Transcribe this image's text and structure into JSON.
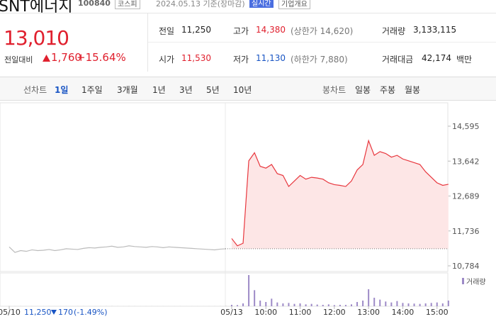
{
  "header": {
    "name": "SNT에너지",
    "code": "100840",
    "market": "코스피",
    "date": "2024.05.13 기준(장마감)",
    "realtime": "실시간",
    "overview": "기업개요"
  },
  "price": {
    "current": "13,010",
    "change_label": "전일대비",
    "change": "1,760",
    "change_rate": "+15.64%"
  },
  "quote": {
    "items": [
      {
        "label": "전일",
        "value": "11,250"
      },
      {
        "label": "고가",
        "value": "14,380",
        "note": "(상한가 14,620)"
      },
      {
        "label": "거래량",
        "value": "3,133,115"
      },
      {
        "label": "시가",
        "value": "11,530"
      },
      {
        "label": "저가",
        "value": "11,130",
        "note": "(하한가 7,880)"
      },
      {
        "label": "거래대금",
        "value": "42,174",
        "unit": "백만"
      }
    ]
  },
  "tabs": {
    "line_label": "선차트",
    "line": [
      "1일",
      "1주일",
      "3개월",
      "1년",
      "3년",
      "5년",
      "10년"
    ],
    "candle_label": "봉차트",
    "candle": [
      "일봉",
      "주봉",
      "월봉"
    ]
  },
  "footer": {
    "date": "05/10",
    "price": "11,250",
    "change": "170",
    "rate": "(-1.49%)"
  },
  "chart_data": {
    "type": "line",
    "categories": [
      "05/10",
      null,
      null,
      null,
      null,
      null,
      null,
      null,
      null,
      null,
      null,
      null,
      null,
      null,
      null,
      null,
      null,
      null,
      null,
      null,
      null,
      null,
      null,
      null,
      null,
      null,
      null,
      null,
      null,
      null,
      null,
      null,
      null,
      null,
      null,
      null,
      null,
      null,
      null,
      "05/13",
      null,
      null,
      null,
      null,
      null,
      "10:00",
      null,
      null,
      null,
      null,
      null,
      "11:00",
      null,
      null,
      null,
      null,
      null,
      "12:00",
      null,
      null,
      null,
      null,
      null,
      "13:00",
      null,
      null,
      null,
      null,
      null,
      "14:00",
      null,
      null,
      null,
      null,
      null,
      "15:00",
      null,
      null
    ],
    "series": [
      {
        "color": "#bbbbbb",
        "values": [
          11300,
          11150,
          11200,
          11180,
          11220,
          11200,
          11210,
          11230,
          11200,
          11220,
          11250,
          11240,
          11230,
          11260,
          11280,
          11270,
          11290,
          11300,
          11320,
          11290,
          11300,
          11330,
          11310,
          11300,
          11290,
          11310,
          11300,
          11280,
          11300,
          11290,
          11280,
          11270,
          11260,
          11250,
          11240,
          11230,
          11220,
          11240,
          11250,
          null,
          null,
          null,
          null,
          null,
          null,
          null,
          null,
          null,
          null,
          null,
          null,
          null,
          null,
          null,
          null,
          null,
          null,
          null,
          null,
          null,
          null,
          null,
          null,
          null,
          null,
          null,
          null,
          null,
          null,
          null,
          null,
          null,
          null,
          null,
          null,
          null,
          null,
          null
        ]
      },
      {
        "color": "#e8373e",
        "values": [
          null,
          null,
          null,
          null,
          null,
          null,
          null,
          null,
          null,
          null,
          null,
          null,
          null,
          null,
          null,
          null,
          null,
          null,
          null,
          null,
          null,
          null,
          null,
          null,
          null,
          null,
          null,
          null,
          null,
          null,
          null,
          null,
          null,
          null,
          null,
          null,
          null,
          null,
          null,
          11530,
          11330,
          11400,
          13650,
          13870,
          13500,
          13450,
          13550,
          13300,
          13250,
          12950,
          13100,
          13250,
          13150,
          13200,
          13180,
          13150,
          13050,
          13000,
          12980,
          12950,
          13100,
          13400,
          13550,
          14200,
          13800,
          13900,
          13850,
          13750,
          13800,
          13700,
          13650,
          13600,
          13550,
          13350,
          13200,
          13050,
          12980,
          13010
        ]
      }
    ],
    "prev_close": 11250,
    "ylim": [
      10784,
      14595
    ],
    "yticks": [
      {
        "value": 14595,
        "label": "14,595"
      },
      {
        "value": 13642,
        "label": "13,642"
      },
      {
        "value": 12689,
        "label": "12,689"
      },
      {
        "value": 11736,
        "label": "11,736"
      },
      {
        "value": 10784,
        "label": "10,784"
      }
    ],
    "volume": {
      "name": "거래량",
      "series": [
        {
          "color": "#cccccc",
          "values": [
            3000,
            1500,
            2000,
            1200,
            1800,
            1000,
            1500,
            2500,
            1200,
            1000,
            1400,
            1100,
            1600,
            2000,
            1300,
            1200,
            1800,
            2200,
            3000,
            1500,
            1200,
            2500,
            1400,
            1000,
            1300,
            1600,
            1100,
            900,
            1200,
            1000,
            1300,
            1100,
            900,
            1200,
            1000,
            1400,
            1600,
            2000,
            4000,
            null,
            null,
            null,
            null,
            null,
            null,
            null,
            null,
            null,
            null,
            null,
            null,
            null,
            null,
            null,
            null,
            null,
            null,
            null,
            null,
            null,
            null,
            null,
            null,
            null,
            null,
            null,
            null,
            null,
            null,
            null,
            null,
            null,
            null,
            null,
            null,
            null,
            null,
            null
          ]
        },
        {
          "color": "#9d8ac7",
          "values": [
            null,
            null,
            null,
            null,
            null,
            null,
            null,
            null,
            null,
            null,
            null,
            null,
            null,
            null,
            null,
            null,
            null,
            null,
            null,
            null,
            null,
            null,
            null,
            null,
            null,
            null,
            null,
            null,
            null,
            null,
            null,
            null,
            null,
            null,
            null,
            null,
            null,
            null,
            null,
            15000,
            12000,
            30000,
            330000,
            170000,
            60000,
            45000,
            80000,
            40000,
            30000,
            35000,
            25000,
            30000,
            20000,
            25000,
            18000,
            15000,
            20000,
            12000,
            15000,
            14000,
            20000,
            45000,
            60000,
            180000,
            90000,
            70000,
            50000,
            40000,
            55000,
            35000,
            30000,
            28000,
            25000,
            30000,
            35000,
            40000,
            30000,
            60000
          ]
        }
      ]
    }
  }
}
